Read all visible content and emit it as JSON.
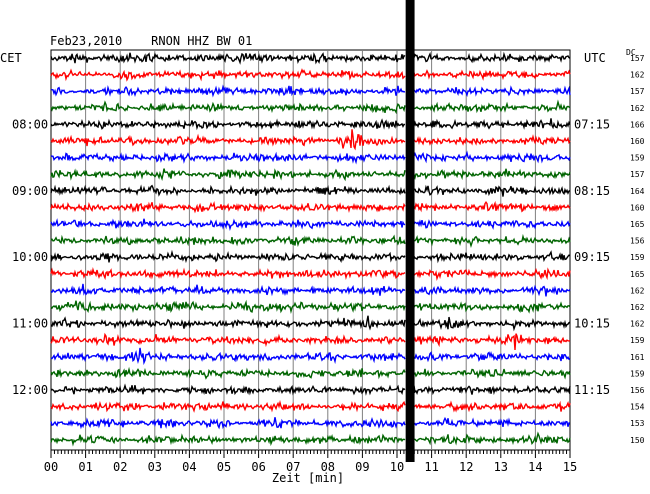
{
  "header": {
    "title": "Feb23,2010    RNON HHZ BW 01",
    "left_zone": "CET",
    "right_zone": "UTC",
    "dc_label": "DC"
  },
  "chart_data": {
    "type": "line",
    "title": "Feb23,2010    RNON HHZ BW 01",
    "xlabel": "Zeit [min]",
    "xlim": [
      0,
      15
    ],
    "x_ticks": [
      "00",
      "01",
      "02",
      "03",
      "04",
      "05",
      "06",
      "07",
      "08",
      "09",
      "10",
      "11",
      "12",
      "13",
      "14",
      "15"
    ],
    "trace_colors": [
      "#000000",
      "#ff0000",
      "#0000ff",
      "#006400"
    ],
    "cet_labels": [
      {
        "row": 4,
        "text": "08:00"
      },
      {
        "row": 8,
        "text": "09:00"
      },
      {
        "row": 12,
        "text": "10:00"
      },
      {
        "row": 16,
        "text": "11:00"
      },
      {
        "row": 20,
        "text": "12:00"
      }
    ],
    "utc_labels": [
      {
        "row": 4,
        "text": "07:15"
      },
      {
        "row": 8,
        "text": "08:15"
      },
      {
        "row": 12,
        "text": "09:15"
      },
      {
        "row": 16,
        "text": "10:15"
      },
      {
        "row": 20,
        "text": "11:15"
      }
    ],
    "dc_offsets": [
      157,
      162,
      157,
      162,
      166,
      160,
      159,
      157,
      164,
      160,
      165,
      156,
      159,
      165,
      162,
      162,
      162,
      159,
      161,
      159,
      156,
      154,
      153,
      150
    ],
    "events": [
      {
        "row": 5,
        "minute": 8.6,
        "amplitude": 2.6
      },
      {
        "row": 16,
        "minute": 9.2,
        "amplitude": 1.4
      },
      {
        "row": 16,
        "minute": 11.5,
        "amplitude": 1.4
      },
      {
        "row": 17,
        "minute": 1.8,
        "amplitude": 1.3
      },
      {
        "row": 17,
        "minute": 13.5,
        "amplitude": 1.4
      },
      {
        "row": 18,
        "minute": 2.5,
        "amplitude": 1.4
      },
      {
        "row": 19,
        "minute": 8.8,
        "amplitude": 1.3
      }
    ],
    "gap": {
      "start_min": 10.25,
      "end_min": 10.45
    }
  }
}
